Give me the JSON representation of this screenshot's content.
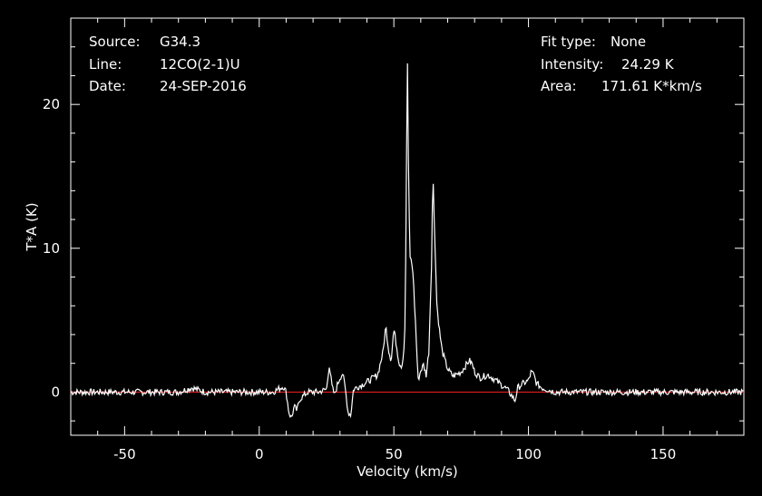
{
  "header_left": {
    "source_label": "Source:",
    "source_value": "G34.3",
    "line_label": "Line:",
    "line_value": "12CO(2-1)U",
    "date_label": "Date:",
    "date_value": "24-SEP-2016"
  },
  "header_right": {
    "fit_label": "Fit type:",
    "fit_value": "None",
    "intensity_label": "Intensity:",
    "intensity_value": "24.29 K",
    "area_label": "Area:",
    "area_value": "171.61 K*km/s"
  },
  "chart_data": {
    "type": "line",
    "title": "",
    "xlabel": "Velocity (km/s)",
    "ylabel": "T*A (K)",
    "xlim": [
      -70,
      180
    ],
    "ylim": [
      -3,
      26
    ],
    "xticks": [
      -50,
      0,
      50,
      100,
      150
    ],
    "yticks": [
      0,
      10,
      20
    ],
    "baseline": 0,
    "colors": {
      "background": "#000000",
      "spectrum": "#ffffff",
      "baseline": "#ff2020",
      "axes": "#ffffff"
    },
    "series": [
      {
        "x": [
          -70,
          -60,
          -50,
          -40,
          -30,
          -25,
          -20,
          -10,
          0,
          5,
          9,
          10,
          11,
          12,
          13,
          14,
          15,
          18,
          22,
          25,
          26,
          26.5,
          27,
          28,
          29,
          30,
          31,
          32,
          33,
          34,
          35,
          37,
          40,
          44,
          46,
          47,
          48,
          49,
          50,
          51,
          52,
          53,
          54,
          54.5,
          55,
          55.5,
          56,
          57,
          58,
          59,
          60,
          61,
          62,
          63,
          64,
          64.5,
          65,
          66,
          67,
          68,
          70,
          72,
          75,
          78,
          79,
          80,
          82,
          85,
          88,
          90,
          92,
          94,
          95,
          96,
          98,
          100,
          101,
          102,
          103,
          105,
          110,
          120,
          140,
          160,
          180
        ],
        "y": [
          0,
          0,
          0,
          0,
          0,
          0.3,
          0,
          0,
          0,
          0,
          0.4,
          0,
          -1.4,
          -1.8,
          -1.0,
          -1.3,
          -0.5,
          0,
          0,
          0.2,
          1.9,
          1.2,
          0.4,
          -0.2,
          0.5,
          1.0,
          1.3,
          0.2,
          -1.4,
          -1.6,
          0.2,
          0.4,
          0.7,
          1.2,
          2.8,
          4.6,
          3.0,
          2.2,
          4.4,
          3.2,
          2.0,
          1.8,
          3.5,
          10,
          24.29,
          14,
          9.5,
          8.6,
          5.0,
          0.8,
          1.5,
          1.9,
          1.2,
          2.8,
          9,
          15.3,
          12,
          6.0,
          4.2,
          2.8,
          1.6,
          1.1,
          1.4,
          2.2,
          2.0,
          1.4,
          1.0,
          1.2,
          0.8,
          0.5,
          0.2,
          -0.3,
          -0.6,
          0.3,
          0.6,
          0.8,
          1.4,
          1.2,
          0.6,
          0.3,
          0,
          0,
          0,
          0,
          0
        ]
      }
    ]
  }
}
